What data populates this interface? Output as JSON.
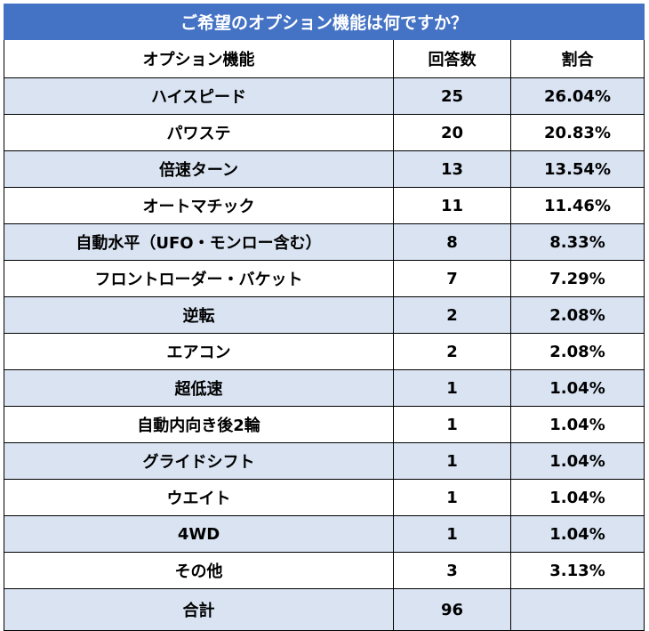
{
  "chart_data": {
    "type": "table",
    "title": "ご希望のオプション機能は何ですか？",
    "columns": [
      "オプション機能",
      "回答数",
      "割合"
    ],
    "rows": [
      {
        "label": "ハイスピード",
        "count": "25",
        "percent": "26.04%"
      },
      {
        "label": "パワステ",
        "count": "20",
        "percent": "20.83%"
      },
      {
        "label": "倍速ターン",
        "count": "13",
        "percent": "13.54%"
      },
      {
        "label": "オートマチック",
        "count": "11",
        "percent": "11.46%"
      },
      {
        "label": "自動水平（UFO・モンロー含む）",
        "count": "8",
        "percent": "8.33%"
      },
      {
        "label": "フロントローダー・バケット",
        "count": "7",
        "percent": "7.29%"
      },
      {
        "label": "逆転",
        "count": "2",
        "percent": "2.08%"
      },
      {
        "label": "エアコン",
        "count": "2",
        "percent": "2.08%"
      },
      {
        "label": "超低速",
        "count": "1",
        "percent": "1.04%"
      },
      {
        "label": "自動内向き後2輪",
        "count": "1",
        "percent": "1.04%"
      },
      {
        "label": "グライドシフト",
        "count": "1",
        "percent": "1.04%"
      },
      {
        "label": "ウエイト",
        "count": "1",
        "percent": "1.04%"
      },
      {
        "label": "4WD",
        "count": "1",
        "percent": "1.04%"
      },
      {
        "label": "その他",
        "count": "3",
        "percent": "3.13%"
      }
    ],
    "total": {
      "label": "合計",
      "count": "96",
      "percent": ""
    }
  },
  "colors": {
    "header_bg": "#4472c4",
    "band_bg": "#d9e3f2",
    "plain_bg": "#ffffff"
  }
}
